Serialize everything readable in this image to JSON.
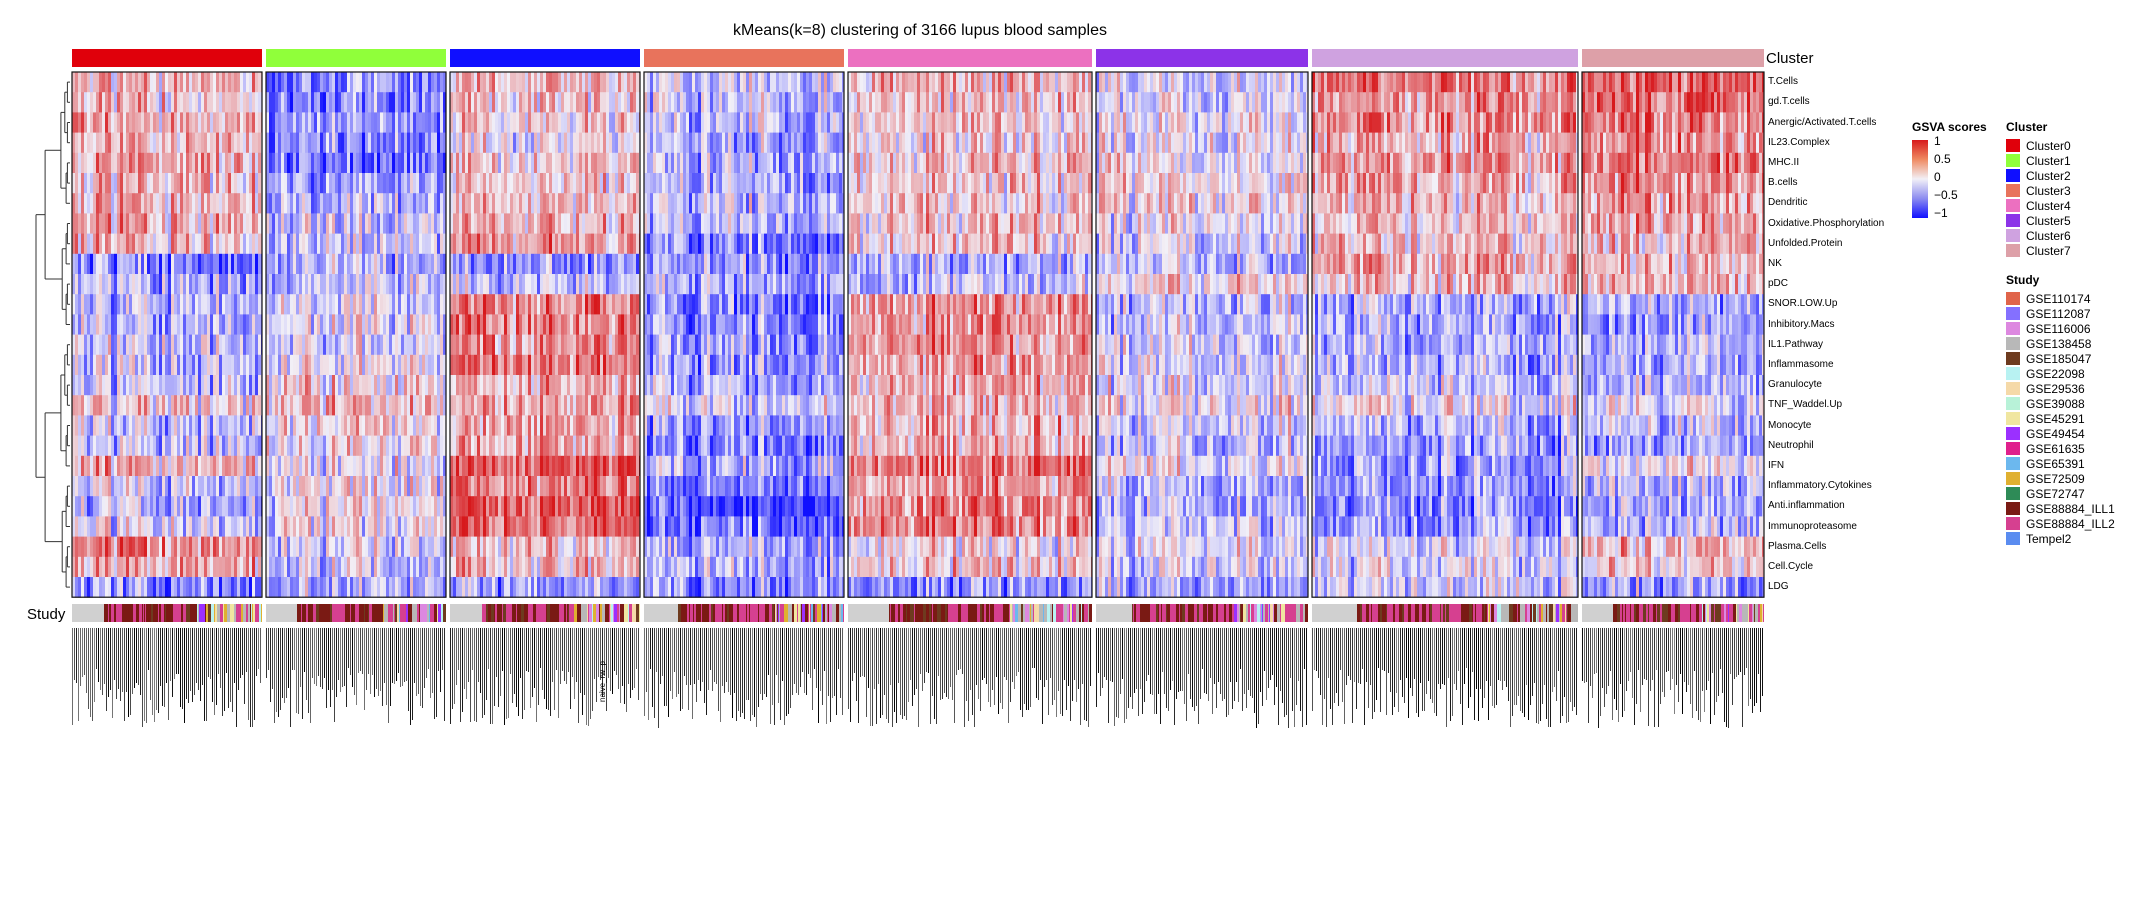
{
  "chart_data": {
    "type": "heatmap",
    "title": "kMeans(k=8) clustering of 3166 lupus blood samples",
    "row_labels": [
      "T.Cells",
      "gd.T.cells",
      "Anergic/Activated.T.cells",
      "IL23.Complex",
      "MHC.II",
      "B.cells",
      "Dendritic",
      "Oxidative.Phosphorylation",
      "Unfolded.Protein",
      "NK",
      "pDC",
      "SNOR.LOW.Up",
      "Inhibitory.Macs",
      "IL1.Pathway",
      "Inflammasome",
      "Granulocyte",
      "TNF_Waddel.Up",
      "Monocyte",
      "Neutrophil",
      "IFN",
      "Inflammatory.Cytokines",
      "Anti.inflammation",
      "Immunoproteasome",
      "Plasma.Cells",
      "Cell.Cycle",
      "LDG"
    ],
    "column_groups": [
      "Cluster0",
      "Cluster1",
      "Cluster2",
      "Cluster3",
      "Cluster4",
      "Cluster5",
      "Cluster6",
      "Cluster7"
    ],
    "group_mean_scores": [
      [
        0.3,
        -0.5,
        0.2,
        -0.2,
        0.3,
        -0.1,
        0.5,
        0.7
      ],
      [
        0.2,
        -0.5,
        0.1,
        -0.2,
        0.2,
        -0.1,
        0.4,
        0.7
      ],
      [
        0.3,
        -0.4,
        0.1,
        -0.2,
        0.2,
        0.0,
        0.4,
        0.6
      ],
      [
        0.2,
        -0.5,
        0.0,
        -0.3,
        0.1,
        0.0,
        0.3,
        0.5
      ],
      [
        0.3,
        -0.6,
        0.1,
        -0.3,
        0.2,
        0.0,
        0.4,
        0.6
      ],
      [
        0.2,
        -0.4,
        0.1,
        -0.3,
        0.2,
        0.1,
        0.3,
        0.5
      ],
      [
        0.2,
        -0.3,
        0.2,
        -0.2,
        0.2,
        0.1,
        0.2,
        0.4
      ],
      [
        0.3,
        -0.2,
        0.2,
        -0.2,
        0.2,
        0.0,
        0.2,
        0.4
      ],
      [
        0.2,
        -0.2,
        0.4,
        -0.5,
        0.2,
        -0.1,
        0.2,
        0.3
      ],
      [
        -0.5,
        -0.3,
        -0.5,
        -0.4,
        -0.3,
        -0.2,
        0.3,
        0.3
      ],
      [
        -0.3,
        -0.2,
        -0.2,
        -0.3,
        -0.2,
        0.1,
        0.2,
        0.3
      ],
      [
        -0.3,
        -0.1,
        0.5,
        -0.5,
        0.4,
        -0.2,
        -0.3,
        -0.3
      ],
      [
        -0.3,
        -0.1,
        0.5,
        -0.5,
        0.4,
        -0.2,
        -0.3,
        -0.3
      ],
      [
        -0.2,
        -0.1,
        0.4,
        -0.4,
        0.4,
        -0.1,
        -0.3,
        -0.2
      ],
      [
        -0.2,
        0.0,
        0.5,
        -0.4,
        0.4,
        -0.1,
        -0.3,
        -0.2
      ],
      [
        -0.2,
        0.1,
        0.3,
        -0.3,
        0.3,
        -0.1,
        -0.2,
        -0.2
      ],
      [
        0.1,
        0.2,
        0.3,
        -0.1,
        0.3,
        0.0,
        0.0,
        0.0
      ],
      [
        -0.2,
        0.1,
        0.3,
        -0.4,
        0.3,
        -0.1,
        -0.3,
        -0.2
      ],
      [
        -0.2,
        0.1,
        0.3,
        -0.5,
        0.3,
        -0.2,
        -0.4,
        -0.3
      ],
      [
        0.3,
        0.0,
        0.7,
        -0.3,
        0.6,
        0.0,
        -0.4,
        0.1
      ],
      [
        -0.2,
        0.0,
        0.5,
        -0.5,
        0.4,
        -0.2,
        -0.4,
        -0.2
      ],
      [
        -0.3,
        0.0,
        0.7,
        -0.7,
        0.5,
        -0.3,
        -0.5,
        -0.3
      ],
      [
        -0.1,
        0.0,
        0.6,
        -0.6,
        0.5,
        -0.2,
        -0.4,
        -0.2
      ],
      [
        0.5,
        -0.1,
        0.2,
        -0.3,
        0.1,
        0.0,
        -0.1,
        0.3
      ],
      [
        0.3,
        -0.2,
        0.2,
        -0.3,
        0.2,
        -0.1,
        -0.1,
        0.2
      ],
      [
        -0.5,
        -0.3,
        -0.4,
        -0.5,
        -0.4,
        -0.3,
        -0.2,
        -0.3
      ]
    ],
    "color_scale": {
      "title": "GSVA scores",
      "ticks": [
        "1",
        "0.5",
        "0",
        "−0.5",
        "−1"
      ],
      "high": "#d7191c",
      "mid": "#f2f0f7",
      "low": "#1010ff"
    },
    "top_annotation": "Cluster",
    "bottom_annotation": "Study"
  },
  "legends": {
    "cluster": {
      "title": "Cluster",
      "items": [
        {
          "label": "Cluster0",
          "color": "#e0000b"
        },
        {
          "label": "Cluster1",
          "color": "#90ff3a"
        },
        {
          "label": "Cluster2",
          "color": "#0f0fff"
        },
        {
          "label": "Cluster3",
          "color": "#e8735c"
        },
        {
          "label": "Cluster4",
          "color": "#ec70c0"
        },
        {
          "label": "Cluster5",
          "color": "#8c33e8"
        },
        {
          "label": "Cluster6",
          "color": "#cfa2e0"
        },
        {
          "label": "Cluster7",
          "color": "#dda0a8"
        }
      ]
    },
    "study": {
      "title": "Study",
      "items": [
        {
          "label": "GSE110174",
          "color": "#e0644a"
        },
        {
          "label": "GSE112087",
          "color": "#8470ff"
        },
        {
          "label": "GSE116006",
          "color": "#dd88e0"
        },
        {
          "label": "GSE138458",
          "color": "#b8b8b8"
        },
        {
          "label": "GSE185047",
          "color": "#6e3b1f"
        },
        {
          "label": "GSE22098",
          "color": "#b8f2f2"
        },
        {
          "label": "GSE29536",
          "color": "#f5d9a8"
        },
        {
          "label": "GSE39088",
          "color": "#b8f2d8"
        },
        {
          "label": "GSE45291",
          "color": "#f0e6a0"
        },
        {
          "label": "GSE49454",
          "color": "#9b30ff"
        },
        {
          "label": "GSE61635",
          "color": "#e0208c"
        },
        {
          "label": "GSE65391",
          "color": "#6cb8ee"
        },
        {
          "label": "GSE72509",
          "color": "#e0b030"
        },
        {
          "label": "GSE72747",
          "color": "#2e8b57"
        },
        {
          "label": "GSE88884_ILL1",
          "color": "#7a1a14"
        },
        {
          "label": "GSE88884_ILL2",
          "color": "#d64090"
        },
        {
          "label": "Tempel2",
          "color": "#5a8cf0"
        }
      ]
    }
  },
  "axis_labels": {
    "cluster": "Cluster",
    "study": "Study"
  },
  "stray_sample_label": "naive_rw_p"
}
